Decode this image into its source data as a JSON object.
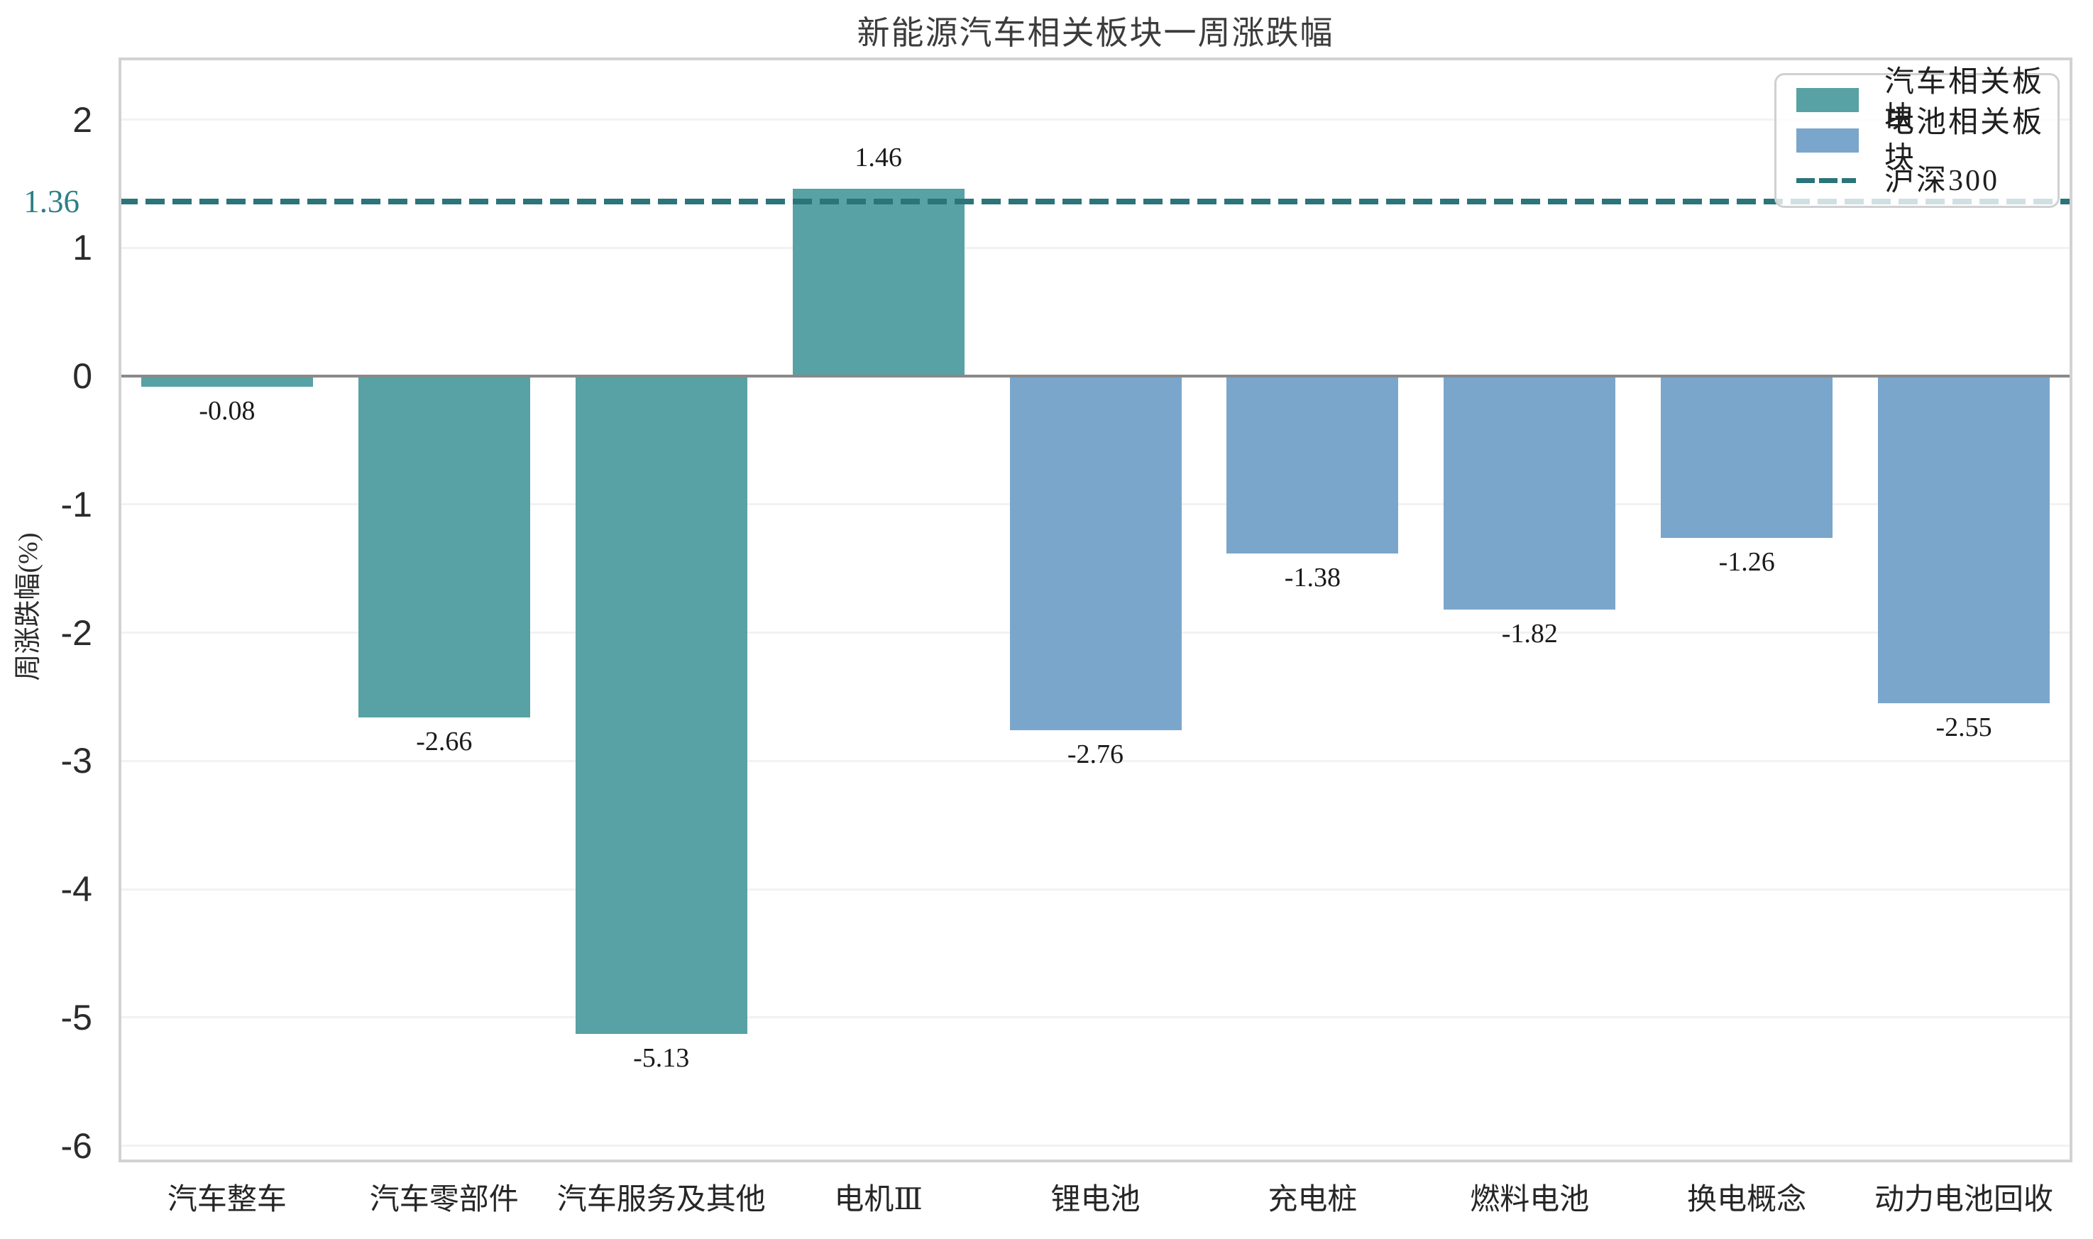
{
  "chart_data": {
    "type": "bar",
    "title": "新能源汽车相关板块一周涨跌幅",
    "xlabel": "",
    "ylabel": "周涨跌幅(%)",
    "categories": [
      "汽车整车",
      "汽车零部件",
      "汽车服务及其他",
      "电机Ⅲ",
      "锂电池",
      "充电桩",
      "燃料电池",
      "换电概念",
      "动力电池回收"
    ],
    "series": [
      {
        "name": "汽车相关板块",
        "color": "#58a1a4"
      },
      {
        "name": "电池相关板块",
        "color": "#7ba6cb"
      }
    ],
    "bar_series_index": [
      0,
      0,
      0,
      0,
      1,
      1,
      1,
      1,
      1
    ],
    "values": [
      -0.08,
      -2.66,
      -5.13,
      1.46,
      -2.76,
      -1.38,
      -1.82,
      -1.26,
      -2.55
    ],
    "value_labels": [
      "-0.08",
      "-2.66",
      "-5.13",
      "1.46",
      "-2.76",
      "-1.38",
      "-1.82",
      "-1.26",
      "-2.55"
    ],
    "benchmark": {
      "name": "沪深300",
      "value": 1.36,
      "label": "1.36",
      "color": "#2b747a",
      "label_color": "#2e7f85",
      "line_style": "dashed"
    },
    "yticks": [
      2,
      1,
      0,
      -1,
      -2,
      -3,
      -4,
      -5,
      -6
    ],
    "ytick_labels": [
      "2",
      "1",
      "0",
      "-1",
      "-2",
      "-3",
      "-4",
      "-5",
      "-6"
    ],
    "ylim": [
      -6.13,
      2.485
    ],
    "grid": true,
    "legend_position": "upper right"
  },
  "theme": {
    "background": "#ffffff",
    "grid_color": "#f2f2f2",
    "plot_border_color": "#d2d2d2",
    "zero_line_color": "#898989",
    "axis_text_color": "#2b2b2b",
    "value_text_color": "#1a1a1a",
    "title_text_color": "#3c3c3c",
    "legend_border_color": "#d0d0d0"
  }
}
